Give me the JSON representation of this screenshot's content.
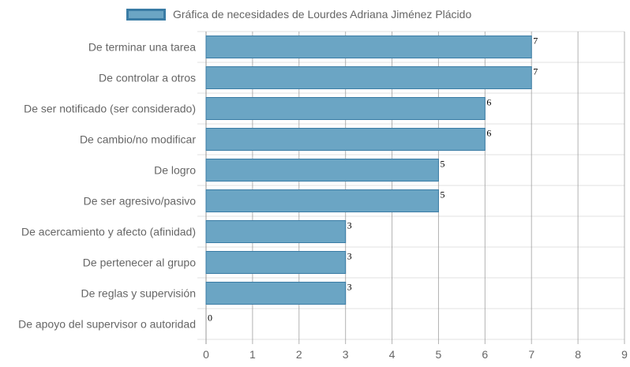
{
  "legend": {
    "label": "Gráfica de necesidades de Lourdes Adriana Jiménez Plácido"
  },
  "colors": {
    "bar_fill": "#6ba5c4",
    "bar_stroke": "#3a7ca5",
    "grid": "#e0e0e0",
    "grid_dark": "#999999",
    "text": "#666666"
  },
  "chart_data": {
    "type": "bar",
    "orientation": "horizontal",
    "categories": [
      "De terminar una tarea",
      "De controlar a otros",
      "De ser notificado (ser considerado)",
      "De cambio/no modificar",
      "De logro",
      "De ser agresivo/pasivo",
      "De acercamiento y afecto (afinidad)",
      "De pertenecer al grupo",
      "De reglas y supervisión",
      "De apoyo del supervisor o autoridad"
    ],
    "series": [
      {
        "name": "Gráfica de necesidades de Lourdes Adriana Jiménez Plácido",
        "values": [
          7,
          7,
          6,
          6,
          5,
          5,
          3,
          3,
          3,
          0
        ]
      }
    ],
    "xlim": [
      0,
      9
    ],
    "xticks": [
      "0",
      "1",
      "2",
      "3",
      "4",
      "5",
      "6",
      "7",
      "8",
      "9"
    ],
    "grid": true,
    "legend_position": "top"
  }
}
